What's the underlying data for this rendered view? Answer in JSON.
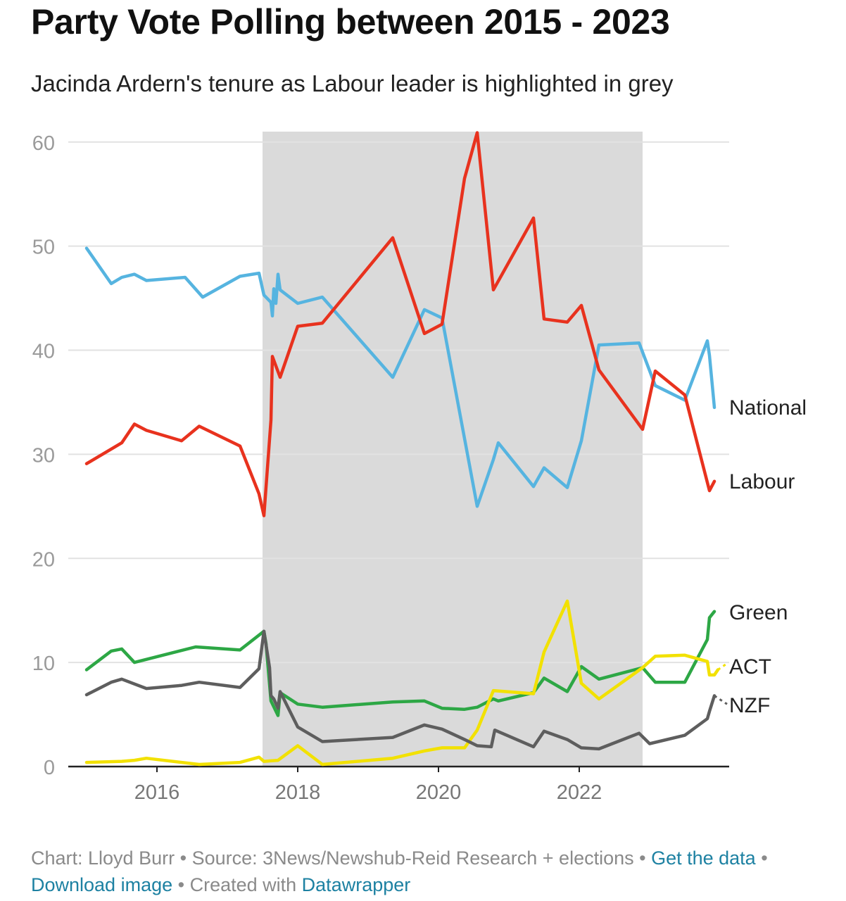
{
  "header": {
    "title": "Party Vote Polling between 2015 - 2023",
    "subtitle": "Jacinda Ardern's tenure as Labour leader is highlighted in grey"
  },
  "footer": {
    "chart_credit": "Chart: Lloyd Burr",
    "source": "Source: 3News/Newshub-Reid Research + elections",
    "separator": " • ",
    "get_data_link": "Get the data",
    "download_link": "Download image",
    "created_with_prefix": "Created with ",
    "datawrapper_link": "Datawrapper"
  },
  "chart_data": {
    "type": "line",
    "title": "Party Vote Polling between 2015 - 2023",
    "subtitle": "Jacinda Ardern's tenure as Labour leader is highlighted in grey",
    "xlabel": "",
    "ylabel": "",
    "xlim": [
      2015.0,
      2024.1
    ],
    "ylim": [
      0,
      61
    ],
    "x_ticks": [
      2016,
      2018,
      2020,
      2022
    ],
    "y_ticks": [
      0,
      10,
      20,
      30,
      40,
      50,
      60
    ],
    "grid": true,
    "highlight_band": {
      "from": 2017.5,
      "to": 2022.9,
      "color": "#dadada"
    },
    "series": [
      {
        "name": "National",
        "color": "#56b4e0",
        "points": [
          [
            2015.0,
            49.8
          ],
          [
            2015.35,
            46.4
          ],
          [
            2015.5,
            47.0
          ],
          [
            2015.68,
            47.3
          ],
          [
            2015.85,
            46.7
          ],
          [
            2016.4,
            47.0
          ],
          [
            2016.65,
            45.1
          ],
          [
            2017.18,
            47.1
          ],
          [
            2017.45,
            47.4
          ],
          [
            2017.52,
            45.3
          ],
          [
            2017.62,
            44.6
          ],
          [
            2017.64,
            43.3
          ],
          [
            2017.66,
            45.9
          ],
          [
            2017.69,
            44.5
          ],
          [
            2017.72,
            47.3
          ],
          [
            2017.75,
            45.8
          ],
          [
            2018.0,
            44.5
          ],
          [
            2018.35,
            45.1
          ],
          [
            2019.35,
            37.4
          ],
          [
            2019.8,
            43.9
          ],
          [
            2020.05,
            43.1
          ],
          [
            2020.55,
            25.0
          ],
          [
            2020.78,
            29.5
          ],
          [
            2020.85,
            31.1
          ],
          [
            2021.35,
            26.9
          ],
          [
            2021.5,
            28.7
          ],
          [
            2021.83,
            26.8
          ],
          [
            2022.03,
            31.3
          ],
          [
            2022.28,
            40.5
          ],
          [
            2022.85,
            40.7
          ],
          [
            2023.08,
            36.6
          ],
          [
            2023.5,
            35.2
          ],
          [
            2023.82,
            40.9
          ],
          [
            2023.85,
            39.5
          ],
          [
            2023.92,
            34.5
          ]
        ]
      },
      {
        "name": "Labour",
        "color": "#e8321e",
        "points": [
          [
            2015.0,
            29.1
          ],
          [
            2015.5,
            31.1
          ],
          [
            2015.68,
            32.9
          ],
          [
            2015.85,
            32.3
          ],
          [
            2016.35,
            31.3
          ],
          [
            2016.6,
            32.7
          ],
          [
            2017.18,
            30.8
          ],
          [
            2017.45,
            26.2
          ],
          [
            2017.52,
            24.1
          ],
          [
            2017.62,
            33.3
          ],
          [
            2017.64,
            39.4
          ],
          [
            2017.75,
            37.4
          ],
          [
            2018.0,
            42.3
          ],
          [
            2018.35,
            42.6
          ],
          [
            2019.35,
            50.8
          ],
          [
            2019.8,
            41.6
          ],
          [
            2020.05,
            42.5
          ],
          [
            2020.37,
            56.5
          ],
          [
            2020.55,
            60.9
          ],
          [
            2020.78,
            45.8
          ],
          [
            2021.35,
            52.7
          ],
          [
            2021.5,
            43.0
          ],
          [
            2021.83,
            42.7
          ],
          [
            2022.03,
            44.3
          ],
          [
            2022.28,
            38.1
          ],
          [
            2022.9,
            32.4
          ],
          [
            2023.08,
            38.0
          ],
          [
            2023.5,
            35.7
          ],
          [
            2023.85,
            26.5
          ],
          [
            2023.92,
            27.4
          ]
        ]
      },
      {
        "name": "Green",
        "color": "#2da745",
        "points": [
          [
            2015.0,
            9.3
          ],
          [
            2015.35,
            11.1
          ],
          [
            2015.5,
            11.3
          ],
          [
            2015.68,
            10.0
          ],
          [
            2016.55,
            11.5
          ],
          [
            2017.18,
            11.2
          ],
          [
            2017.52,
            13.0
          ],
          [
            2017.55,
            11.8
          ],
          [
            2017.62,
            6.3
          ],
          [
            2017.72,
            4.9
          ],
          [
            2017.75,
            7.1
          ],
          [
            2018.0,
            6.0
          ],
          [
            2018.35,
            5.7
          ],
          [
            2019.35,
            6.2
          ],
          [
            2019.8,
            6.3
          ],
          [
            2020.05,
            5.6
          ],
          [
            2020.37,
            5.5
          ],
          [
            2020.55,
            5.7
          ],
          [
            2020.78,
            6.5
          ],
          [
            2020.85,
            6.3
          ],
          [
            2021.35,
            7.1
          ],
          [
            2021.5,
            8.5
          ],
          [
            2021.83,
            7.2
          ],
          [
            2022.03,
            9.6
          ],
          [
            2022.28,
            8.4
          ],
          [
            2022.9,
            9.5
          ],
          [
            2023.08,
            8.1
          ],
          [
            2023.5,
            8.1
          ],
          [
            2023.82,
            12.2
          ],
          [
            2023.85,
            14.3
          ],
          [
            2023.92,
            14.9
          ]
        ]
      },
      {
        "name": "ACT",
        "color": "#f2e100",
        "points": [
          [
            2015.0,
            0.4
          ],
          [
            2015.5,
            0.5
          ],
          [
            2015.68,
            0.6
          ],
          [
            2015.85,
            0.8
          ],
          [
            2016.6,
            0.2
          ],
          [
            2017.18,
            0.4
          ],
          [
            2017.45,
            0.9
          ],
          [
            2017.52,
            0.5
          ],
          [
            2017.72,
            0.6
          ],
          [
            2018.0,
            2.0
          ],
          [
            2018.35,
            0.2
          ],
          [
            2019.35,
            0.8
          ],
          [
            2019.8,
            1.5
          ],
          [
            2020.05,
            1.8
          ],
          [
            2020.37,
            1.8
          ],
          [
            2020.55,
            3.5
          ],
          [
            2020.78,
            7.3
          ],
          [
            2021.35,
            7.0
          ],
          [
            2021.5,
            11.0
          ],
          [
            2021.83,
            15.9
          ],
          [
            2022.03,
            8.0
          ],
          [
            2022.28,
            6.5
          ],
          [
            2022.9,
            9.5
          ],
          [
            2023.08,
            10.6
          ],
          [
            2023.5,
            10.7
          ],
          [
            2023.82,
            10.1
          ],
          [
            2023.85,
            8.8
          ],
          [
            2023.92,
            8.8
          ],
          [
            2023.97,
            9.3
          ]
        ],
        "dashed_tail": [
          [
            2023.97,
            9.3
          ],
          [
            2024.1,
            9.9
          ]
        ]
      },
      {
        "name": "NZF",
        "color": "#5e5e5e",
        "points": [
          [
            2015.0,
            6.9
          ],
          [
            2015.35,
            8.1
          ],
          [
            2015.5,
            8.4
          ],
          [
            2015.85,
            7.5
          ],
          [
            2016.35,
            7.8
          ],
          [
            2016.6,
            8.1
          ],
          [
            2017.18,
            7.6
          ],
          [
            2017.45,
            9.4
          ],
          [
            2017.52,
            13.0
          ],
          [
            2017.6,
            9.5
          ],
          [
            2017.62,
            6.8
          ],
          [
            2017.66,
            6.5
          ],
          [
            2017.72,
            5.6
          ],
          [
            2017.75,
            7.2
          ],
          [
            2018.0,
            3.8
          ],
          [
            2018.35,
            2.4
          ],
          [
            2019.35,
            2.8
          ],
          [
            2019.8,
            4.0
          ],
          [
            2020.05,
            3.6
          ],
          [
            2020.37,
            2.6
          ],
          [
            2020.55,
            2.0
          ],
          [
            2020.75,
            1.9
          ],
          [
            2020.8,
            3.5
          ],
          [
            2021.35,
            1.9
          ],
          [
            2021.5,
            3.4
          ],
          [
            2021.83,
            2.6
          ],
          [
            2022.03,
            1.8
          ],
          [
            2022.28,
            1.7
          ],
          [
            2022.85,
            3.2
          ],
          [
            2023.0,
            2.2
          ],
          [
            2023.5,
            3.0
          ],
          [
            2023.82,
            4.6
          ],
          [
            2023.85,
            5.3
          ],
          [
            2023.92,
            6.8
          ]
        ],
        "dashed_tail": [
          [
            2023.92,
            6.8
          ],
          [
            2024.1,
            6.0
          ]
        ]
      }
    ],
    "labels": [
      {
        "series": "National",
        "text": "National",
        "anchor_y": 34.5
      },
      {
        "series": "Labour",
        "text": "Labour",
        "anchor_y": 27.4
      },
      {
        "series": "Green",
        "text": "Green",
        "anchor_y": 14.8
      },
      {
        "series": "ACT",
        "text": "ACT",
        "anchor_y": 9.6
      },
      {
        "series": "NZF",
        "text": "NZF",
        "anchor_y": 5.9
      }
    ]
  }
}
